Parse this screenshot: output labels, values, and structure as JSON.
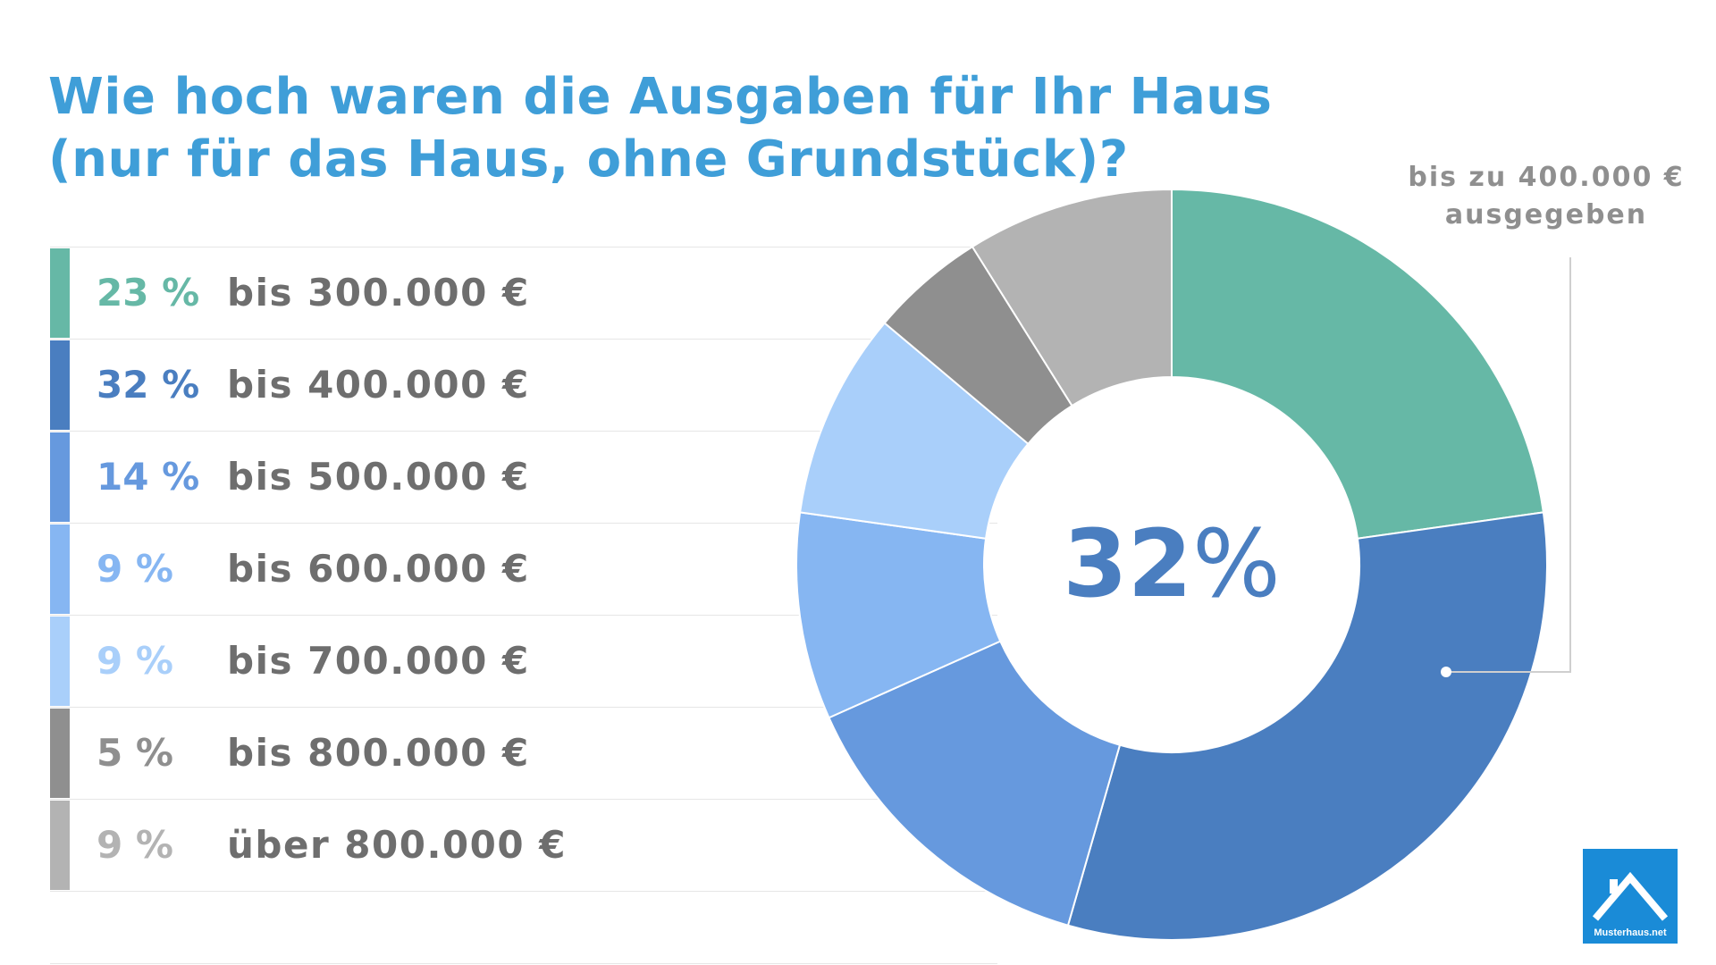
{
  "title": {
    "line1": "Wie hoch waren die Ausgaben für Ihr Haus",
    "line2": "(nur für das Haus, ohne Grundstück)?"
  },
  "legend": [
    {
      "pct": "23 %",
      "label": "bis 300.000 €",
      "color": "#66b8a6"
    },
    {
      "pct": "32 %",
      "label": "bis 400.000 €",
      "color": "#4a7ec0"
    },
    {
      "pct": "14 %",
      "label": "bis 500.000 €",
      "color": "#6699de"
    },
    {
      "pct": "9 %",
      "label": "bis 600.000 €",
      "color": "#86b6f2"
    },
    {
      "pct": "9 %",
      "label": "bis 700.000 €",
      "color": "#a9cffa"
    },
    {
      "pct": "5 %",
      "label": "bis 800.000 €",
      "color": "#8f8f8f"
    },
    {
      "pct": "9 %",
      "label": "über 800.000 €",
      "color": "#b3b3b3"
    }
  ],
  "chart_data": {
    "type": "pie",
    "variant": "donut",
    "categories": [
      "bis 300.000 €",
      "bis 400.000 €",
      "bis 500.000 €",
      "bis 600.000 €",
      "bis 700.000 €",
      "bis 800.000 €",
      "über 800.000 €"
    ],
    "values": [
      23,
      32,
      14,
      9,
      9,
      5,
      9
    ],
    "unit": "%",
    "colors": [
      "#66b8a6",
      "#4a7ec0",
      "#6699de",
      "#86b6f2",
      "#a9cffa",
      "#8f8f8f",
      "#b3b3b3"
    ],
    "center_number": "32",
    "center_unit": "%",
    "highlighted_category": "bis 400.000 €",
    "callout": {
      "line1": "bis zu 400.000 €",
      "line2": "ausgegeben"
    }
  },
  "logo": {
    "text": "Musterhaus.net",
    "color": "#1a8bd7"
  }
}
